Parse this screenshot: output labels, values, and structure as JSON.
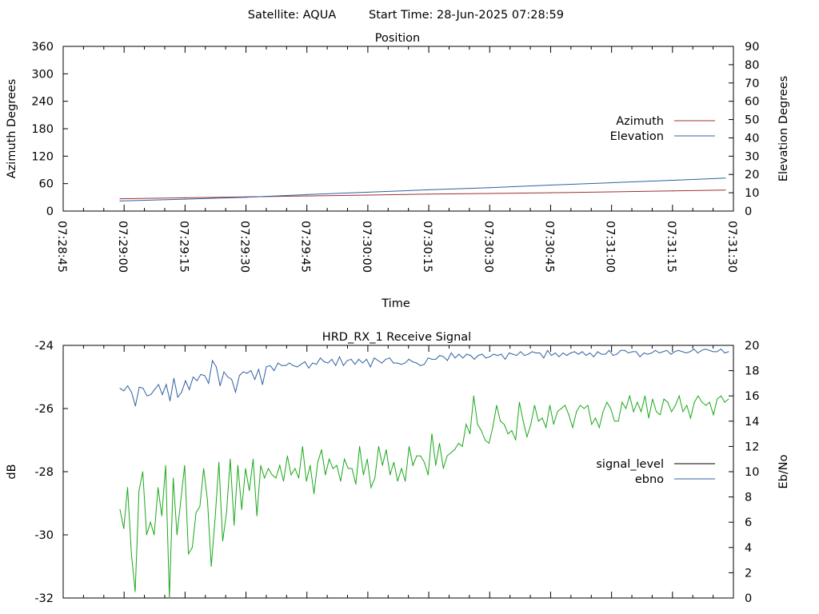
{
  "header": {
    "satellite": "Satellite: AQUA",
    "start_time": "Start Time: 28-Jun-2025 07:28:59"
  },
  "chart_data": [
    {
      "type": "line",
      "title": "Position",
      "xlabel": "Time",
      "ylabel_left": "Azimuth Degrees",
      "ylabel_right": "Elevation Degrees",
      "x_ticks": [
        "07:28:45",
        "07:29:00",
        "07:29:15",
        "07:29:30",
        "07:29:45",
        "07:30:00",
        "07:30:15",
        "07:30:30",
        "07:30:45",
        "07:31:00",
        "07:31:15",
        "07:31:30"
      ],
      "xlim_seconds_from_tick0": [
        0,
        165
      ],
      "ylim_left": [
        0,
        360
      ],
      "ylim_right": [
        0,
        90
      ],
      "y_ticks_left": [
        0,
        60,
        120,
        180,
        240,
        300,
        360
      ],
      "y_ticks_right": [
        0,
        10,
        20,
        30,
        40,
        50,
        60,
        70,
        80,
        90
      ],
      "legend_position": "right",
      "series": [
        {
          "name": "Azimuth",
          "axis": "left",
          "color": "#a03030",
          "x_seconds": [
            14,
            30,
            45,
            60,
            75,
            90,
            105,
            120,
            135,
            150,
            163
          ],
          "values": [
            27,
            29,
            31,
            33,
            35,
            37,
            38.5,
            40,
            42,
            44,
            46
          ]
        },
        {
          "name": "Elevation",
          "axis": "right",
          "color": "#3060a0",
          "x_seconds": [
            14,
            30,
            45,
            60,
            75,
            90,
            105,
            120,
            135,
            150,
            163
          ],
          "values": [
            5.5,
            6.5,
            7.5,
            9,
            10.3,
            11.6,
            12.8,
            14.2,
            15.5,
            16.8,
            18
          ]
        }
      ]
    },
    {
      "type": "line",
      "title": "HRD_RX_1 Receive Signal",
      "ylabel_left": "dB",
      "ylabel_right": "Eb/No",
      "ylim_left": [
        -32,
        -24
      ],
      "ylim_right": [
        0,
        20
      ],
      "y_ticks_left": [
        -32,
        -30,
        -28,
        -26,
        -24
      ],
      "y_ticks_right": [
        0,
        2,
        4,
        6,
        8,
        10,
        12,
        14,
        16,
        18,
        20
      ],
      "legend_position": "right",
      "series": [
        {
          "name": "signal_level",
          "axis": "left",
          "color": "#1aa81a",
          "legend_color": "#000000",
          "values": [
            -29.2,
            -29.8,
            -28.5,
            -30.6,
            -31.8,
            -28.6,
            -28,
            -30,
            -29.6,
            -30,
            -28.5,
            -29.4,
            -27.8,
            -32,
            -28.2,
            -30,
            -28.9,
            -27.8,
            -30.6,
            -30.4,
            -29.3,
            -29.1,
            -27.9,
            -28.9,
            -31,
            -29.5,
            -27.7,
            -30.2,
            -29.3,
            -27.6,
            -29.7,
            -27.8,
            -29.2,
            -27.9,
            -28.6,
            -27.6,
            -29.4,
            -27.8,
            -28.2,
            -27.9,
            -28.1,
            -28.2,
            -27.8,
            -28.3,
            -27.5,
            -28.1,
            -27.9,
            -28.2,
            -27.2,
            -28.3,
            -27.8,
            -28.7,
            -27.7,
            -27.3,
            -28.1,
            -27.6,
            -27.9,
            -27.8,
            -28.3,
            -27.6,
            -27.9,
            -27.9,
            -28.4,
            -27.2,
            -28.1,
            -27.6,
            -28.5,
            -28.2,
            -27.2,
            -27.8,
            -27.3,
            -28.1,
            -27.7,
            -28.3,
            -27.9,
            -28.3,
            -27.2,
            -27.8,
            -27.5,
            -27.5,
            -27.7,
            -28.1,
            -26.8,
            -27.8,
            -27.1,
            -27.9,
            -27.5,
            -27.4,
            -27.3,
            -27.1,
            -27.2,
            -26.5,
            -26.8,
            -25.6,
            -26.5,
            -26.7,
            -27,
            -27.1,
            -26.6,
            -25.9,
            -26.4,
            -26.5,
            -26.8,
            -26.7,
            -27,
            -25.8,
            -26.4,
            -26.9,
            -26.5,
            -25.9,
            -26.4,
            -26.3,
            -26.6,
            -25.9,
            -26.5,
            -26.1,
            -26,
            -25.9,
            -26.2,
            -26.6,
            -26.1,
            -25.9,
            -26,
            -25.9,
            -26.5,
            -26.3,
            -26.6,
            -26.1,
            -25.8,
            -26,
            -26.4,
            -26.4,
            -25.8,
            -26,
            -25.6,
            -26.1,
            -25.8,
            -26.1,
            -25.6,
            -26.3,
            -25.7,
            -26.1,
            -26.2,
            -25.7,
            -25.8,
            -26.1,
            -25.9,
            -25.6,
            -26.1,
            -25.9,
            -26.3,
            -25.8,
            -25.6,
            -25.8,
            -25.9,
            -25.8,
            -26.2,
            -25.7,
            -25.6,
            -25.8,
            -25.7
          ],
          "value_axis": "left"
        },
        {
          "name": "ebno",
          "axis": "right",
          "color": "#3060a0",
          "values": [
            16.6,
            16.4,
            16.8,
            16.3,
            15.2,
            16.7,
            16.6,
            16.0,
            16.1,
            16.5,
            16.9,
            16.1,
            16.9,
            15.6,
            17.4,
            15.9,
            16.3,
            17.2,
            16.5,
            17.5,
            17.2,
            17.7,
            17.6,
            17.0,
            18.8,
            18.3,
            16.8,
            17.9,
            17.5,
            17.3,
            16.3,
            17.6,
            17.9,
            17.8,
            18.0,
            17.3,
            18.1,
            16.9,
            18.3,
            18.4,
            18.0,
            18.6,
            18.4,
            18.4,
            18.6,
            18.4,
            18.3,
            18.5,
            18.7,
            18.2,
            18.6,
            18.5,
            19.0,
            18.7,
            18.6,
            18.9,
            18.4,
            19.1,
            18.4,
            18.8,
            18.9,
            18.5,
            18.9,
            18.6,
            18.9,
            18.3,
            19.0,
            18.8,
            18.6,
            18.9,
            19.0,
            18.6,
            18.6,
            18.5,
            18.6,
            18.9,
            18.7,
            18.6,
            18.4,
            18.5,
            19.0,
            18.9,
            18.9,
            19.2,
            19.1,
            18.8,
            19.4,
            19.0,
            19.3,
            19.0,
            19.3,
            19.2,
            18.9,
            19.2,
            19.3,
            19.0,
            19.1,
            19.3,
            19.2,
            19.3,
            18.9,
            19.4,
            19.3,
            19.2,
            19.5,
            19.2,
            19.3,
            19.5,
            19.4,
            19.4,
            19.0,
            19.6,
            19.2,
            19.4,
            19.1,
            19.4,
            19.2,
            19.4,
            19.5,
            19.3,
            19.5,
            19.2,
            19.4,
            19.1,
            19.5,
            19.3,
            19.3,
            19.6,
            19.2,
            19.3,
            19.6,
            19.6,
            19.4,
            19.5,
            19.5,
            19.1,
            19.4,
            19.3,
            19.4,
            19.6,
            19.4,
            19.5,
            19.6,
            19.3,
            19.5,
            19.6,
            19.5,
            19.4,
            19.5,
            19.7,
            19.4,
            19.6,
            19.7,
            19.6,
            19.5,
            19.5,
            19.7,
            19.4,
            19.5
          ]
        }
      ]
    }
  ]
}
